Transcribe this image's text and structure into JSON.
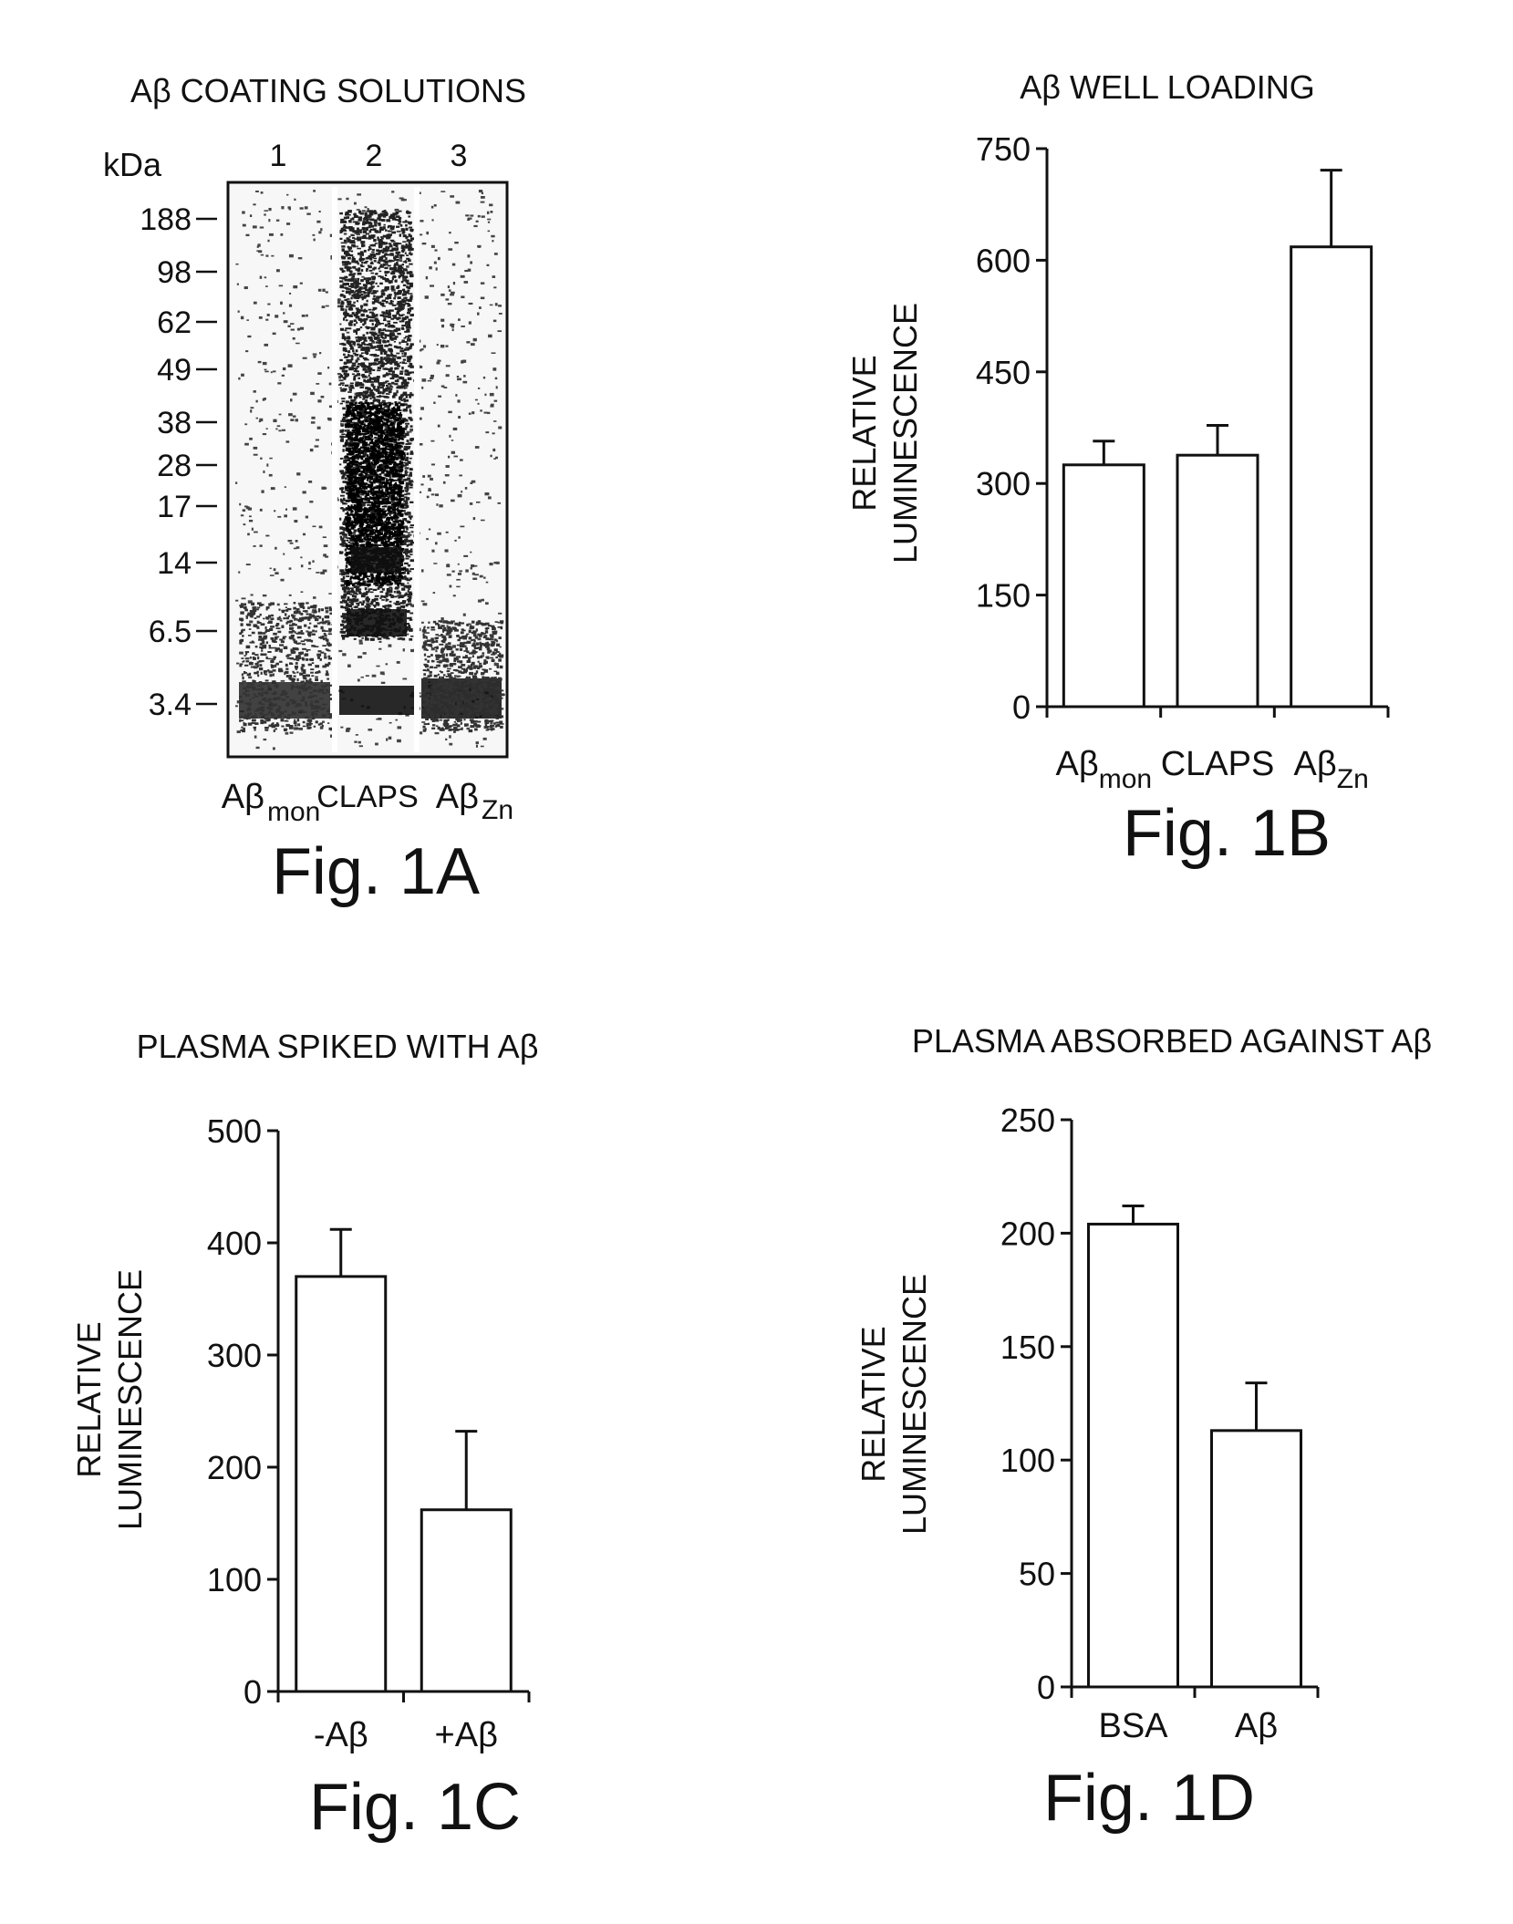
{
  "gel": {
    "title": "Aβ COATING SOLUTIONS",
    "kda_label": "kDa",
    "lane_numbers": [
      "1",
      "2",
      "3"
    ],
    "markers": [
      "188",
      "98",
      "62",
      "49",
      "38",
      "28",
      "17",
      "14",
      "6.5",
      "3.4"
    ],
    "lane_labels": [
      {
        "main": "Aβ",
        "sub": "mon"
      },
      {
        "main": "CLAPS",
        "sub": ""
      },
      {
        "main": "Aβ",
        "sub": "Zn"
      }
    ],
    "figure_label": "Fig. 1A"
  },
  "chart_data": [
    {
      "id": "fig1b",
      "type": "bar",
      "title": "Aβ WELL LOADING",
      "ylabel_line1": "RELATIVE",
      "ylabel_line2": "LUMINESCENCE",
      "categories": [
        {
          "main": "Aβ",
          "sub": "mon"
        },
        {
          "main": "CLAPS",
          "sub": ""
        },
        {
          "main": "Aβ",
          "sub": "Zn"
        }
      ],
      "values": [
        325,
        338,
        618
      ],
      "errors": [
        32,
        40,
        103
      ],
      "ylim": [
        0,
        750
      ],
      "yticks": [
        0,
        150,
        300,
        450,
        600,
        750
      ],
      "figure_label": "Fig. 1B"
    },
    {
      "id": "fig1c",
      "type": "bar",
      "title": "PLASMA SPIKED WITH Aβ",
      "ylabel_line1": "RELATIVE",
      "ylabel_line2": "LUMINESCENCE",
      "categories": [
        {
          "main": "-Aβ",
          "sub": ""
        },
        {
          "main": "+Aβ",
          "sub": ""
        }
      ],
      "values": [
        370,
        162
      ],
      "errors": [
        42,
        70
      ],
      "ylim": [
        0,
        500
      ],
      "yticks": [
        0,
        100,
        200,
        300,
        400,
        500
      ],
      "figure_label": "Fig. 1C"
    },
    {
      "id": "fig1d",
      "type": "bar",
      "title": "PLASMA ABSORBED AGAINST Aβ",
      "ylabel_line1": "RELATIVE",
      "ylabel_line2": "LUMINESCENCE",
      "categories": [
        {
          "main": "BSA",
          "sub": ""
        },
        {
          "main": "Aβ",
          "sub": ""
        }
      ],
      "values": [
        204,
        113
      ],
      "errors": [
        8,
        21
      ],
      "ylim": [
        0,
        250
      ],
      "yticks": [
        0,
        50,
        100,
        150,
        200,
        250
      ],
      "figure_label": "Fig. 1D"
    }
  ]
}
